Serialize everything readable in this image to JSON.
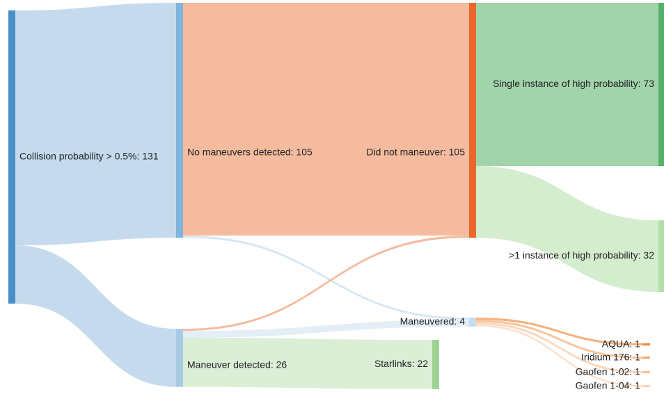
{
  "sankey": {
    "nodes": [
      {
        "id": "root",
        "label": "Collision probability > 0.5%: 131",
        "value": 131,
        "color": "#4a90c8"
      },
      {
        "id": "nomd",
        "label": "No maneuvers detected: 105",
        "value": 105,
        "color": "#7fb4dc"
      },
      {
        "id": "md",
        "label": "Maneuver detected: 26",
        "value": 26,
        "color": "#a9cbe4"
      },
      {
        "id": "didnot",
        "label": "Did not maneuver: 105",
        "value": 105,
        "color": "#e8672a"
      },
      {
        "id": "maneuvered",
        "label": "Maneuvered: 4",
        "value": 4,
        "color": "#c6dcee"
      },
      {
        "id": "starlinks",
        "label": "Starlinks: 22",
        "value": 22,
        "color": "#9fd393"
      },
      {
        "id": "single",
        "label": "Single instance of high probability: 73",
        "value": 73,
        "color": "#56b068"
      },
      {
        "id": "multi",
        "label": ">1 instance of high probability: 32",
        "value": 32,
        "color": "#b2dea7"
      },
      {
        "id": "aqua",
        "label": "AQUA: 1",
        "value": 1,
        "color": "#f08a3c"
      },
      {
        "id": "iridium",
        "label": "Iridium 176: 1",
        "value": 1,
        "color": "#f3a869"
      },
      {
        "id": "gaofen102",
        "label": "Gaofen 1-02: 1",
        "value": 1,
        "color": "#f6c39b"
      },
      {
        "id": "gaofen104",
        "label": "Gaofen 1-04: 1",
        "value": 1,
        "color": "#f8d4b6"
      }
    ],
    "links": [
      {
        "source": "root",
        "target": "nomd",
        "value": 105
      },
      {
        "source": "root",
        "target": "md",
        "value": 26
      },
      {
        "source": "nomd",
        "target": "didnot",
        "value": 104
      },
      {
        "source": "nomd",
        "target": "maneuvered",
        "value": 1
      },
      {
        "source": "md",
        "target": "didnot",
        "value": 1
      },
      {
        "source": "md",
        "target": "maneuvered",
        "value": 3
      },
      {
        "source": "md",
        "target": "starlinks",
        "value": 22
      },
      {
        "source": "didnot",
        "target": "single",
        "value": 73
      },
      {
        "source": "didnot",
        "target": "multi",
        "value": 32
      },
      {
        "source": "maneuvered",
        "target": "aqua",
        "value": 1
      },
      {
        "source": "maneuvered",
        "target": "iridium",
        "value": 1
      },
      {
        "source": "maneuvered",
        "target": "gaofen102",
        "value": 1
      },
      {
        "source": "maneuvered",
        "target": "gaofen104",
        "value": 1
      }
    ]
  }
}
